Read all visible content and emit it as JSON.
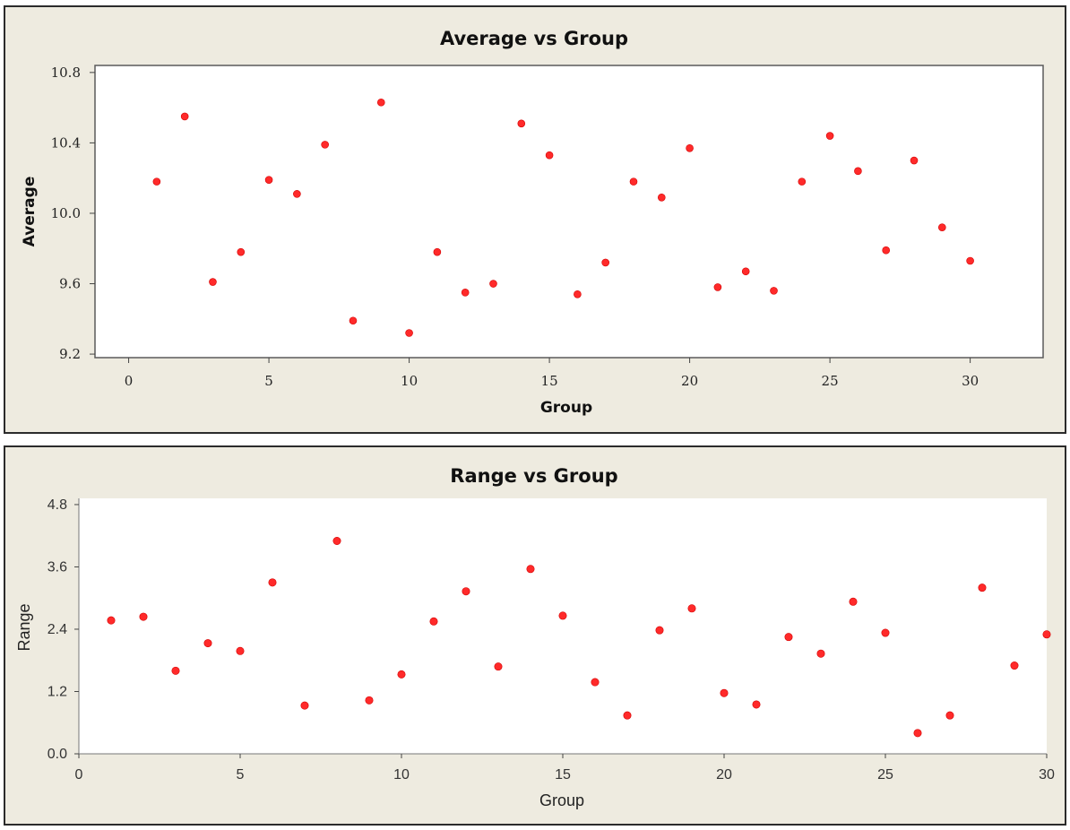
{
  "chart_data": [
    {
      "type": "scatter",
      "title": "Average vs Group",
      "xlabel": "Group",
      "ylabel": "Average",
      "xlim": [
        -1.2,
        32.6
      ],
      "ylim": [
        9.18,
        10.84
      ],
      "xticks": [
        0,
        5,
        10,
        15,
        20,
        25,
        30
      ],
      "yticks": [
        9.2,
        9.6,
        10.0,
        10.4,
        10.8
      ],
      "ytick_labels": [
        "9.2",
        "9.6",
        "10.0",
        "10.4",
        "10.8"
      ],
      "grid": false,
      "marker_color": "#ff2a2a",
      "x": [
        1,
        2,
        3,
        4,
        5,
        6,
        7,
        8,
        9,
        10,
        11,
        12,
        13,
        14,
        15,
        16,
        17,
        18,
        19,
        20,
        21,
        22,
        23,
        24,
        25,
        26,
        27,
        28,
        29,
        30
      ],
      "y": [
        10.18,
        10.55,
        9.61,
        9.78,
        10.19,
        10.11,
        10.39,
        9.39,
        10.63,
        9.32,
        9.78,
        9.55,
        9.6,
        10.51,
        10.33,
        9.54,
        9.72,
        10.18,
        10.09,
        10.37,
        9.58,
        9.67,
        9.56,
        10.18,
        10.44,
        10.24,
        9.79,
        10.3,
        9.92,
        9.73
      ]
    },
    {
      "type": "scatter",
      "title": "Range vs Group",
      "xlabel": "Group",
      "ylabel": "Range",
      "xlim": [
        0,
        30
      ],
      "ylim": [
        0,
        4.92
      ],
      "xticks": [
        0,
        5,
        10,
        15,
        20,
        25,
        30
      ],
      "yticks": [
        0.0,
        1.2,
        2.4,
        3.6,
        4.8
      ],
      "ytick_labels": [
        "0.0",
        "1.2",
        "2.4",
        "3.6",
        "4.8"
      ],
      "grid": false,
      "marker_color": "#ff2a2a",
      "x": [
        1,
        2,
        3,
        4,
        5,
        6,
        7,
        8,
        9,
        10,
        11,
        12,
        13,
        14,
        15,
        16,
        17,
        18,
        19,
        20,
        21,
        22,
        23,
        24,
        25,
        26,
        27,
        28,
        29,
        30
      ],
      "y": [
        2.57,
        2.64,
        1.6,
        2.13,
        1.98,
        3.3,
        0.93,
        4.1,
        1.03,
        1.53,
        2.55,
        3.13,
        1.68,
        3.56,
        2.66,
        1.38,
        0.74,
        2.38,
        2.8,
        1.17,
        0.95,
        2.25,
        1.93,
        2.93,
        2.33,
        0.4,
        0.74,
        3.2,
        1.7,
        2.3
      ]
    }
  ]
}
